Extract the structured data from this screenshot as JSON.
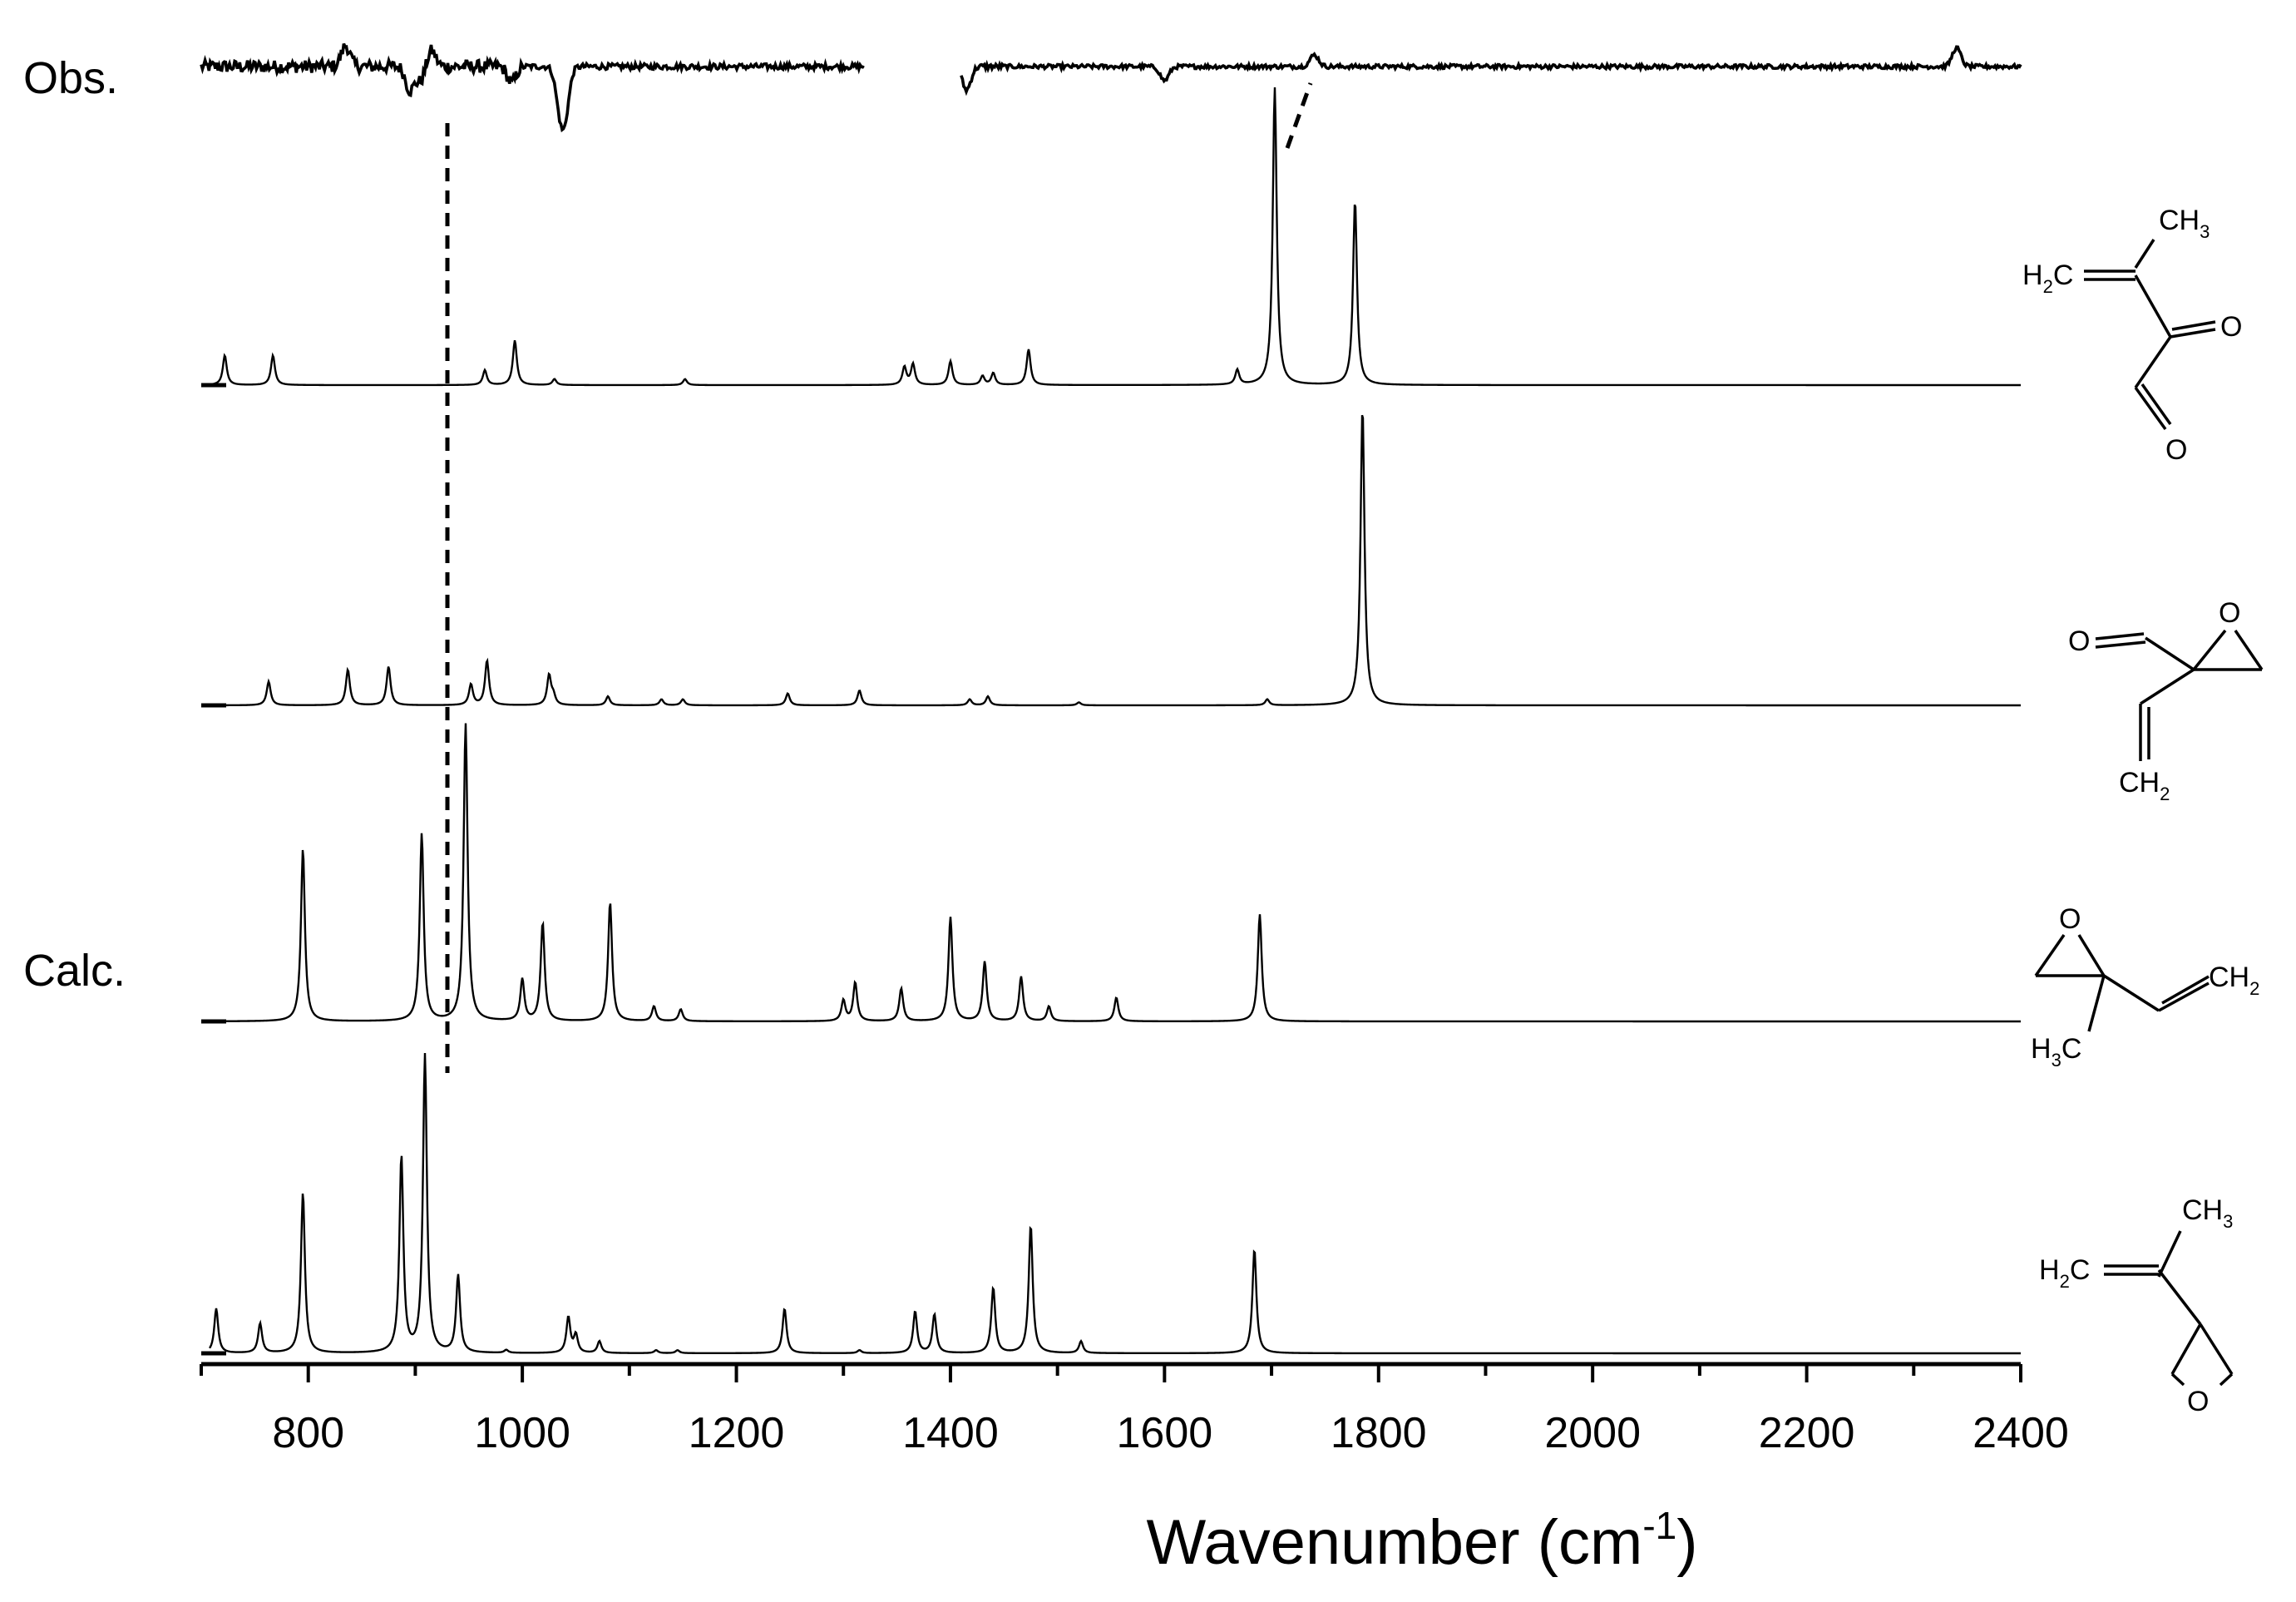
{
  "labels": {
    "observed": "Obs.",
    "calculated": "Calc."
  },
  "chart_data": {
    "type": "line",
    "xlabel": "Wavenumber (cm",
    "xlabel_sup": "-1",
    "xlabel_close": ")",
    "xlim": [
      700,
      2400
    ],
    "xticks": [
      800,
      1000,
      1200,
      1400,
      1600,
      1800,
      2000,
      2200,
      2400
    ],
    "grid": false,
    "legend": "none",
    "observed": {
      "segments": [
        [
          700,
          1320
        ],
        [
          1410,
          2400
        ]
      ],
      "features": [
        {
          "x": 835,
          "h": 0.9
        },
        {
          "x": 895,
          "h": -1.0
        },
        {
          "x": 905,
          "h": -0.6
        },
        {
          "x": 915,
          "h": 0.7
        },
        {
          "x": 990,
          "h": -0.7
        },
        {
          "x": 1035,
          "h": -1.5
        },
        {
          "x": 1040,
          "h": -1.8
        },
        {
          "x": 1415,
          "h": -1.0
        },
        {
          "x": 1600,
          "h": -0.6
        },
        {
          "x": 1740,
          "h": 0.5
        },
        {
          "x": 2340,
          "h": 0.8
        }
      ]
    },
    "calc_series": [
      {
        "peaks": [
          [
            722,
            0.1
          ],
          [
            767,
            0.1
          ],
          [
            965,
            0.05
          ],
          [
            993,
            0.15
          ],
          [
            1030,
            0.02
          ],
          [
            1152,
            0.02
          ],
          [
            1357,
            0.06
          ],
          [
            1365,
            0.07
          ],
          [
            1400,
            0.08
          ],
          [
            1430,
            0.03
          ],
          [
            1440,
            0.04
          ],
          [
            1473,
            0.12
          ],
          [
            1668,
            0.05
          ],
          [
            1703,
            1.0
          ],
          [
            1778,
            0.62
          ]
        ]
      },
      {
        "peaks": [
          [
            763,
            0.08
          ],
          [
            837,
            0.12
          ],
          [
            875,
            0.13
          ],
          [
            952,
            0.07
          ],
          [
            967,
            0.15
          ],
          [
            1025,
            0.1
          ],
          [
            1029,
            0.03
          ],
          [
            1080,
            0.03
          ],
          [
            1130,
            0.02
          ],
          [
            1150,
            0.02
          ],
          [
            1248,
            0.04
          ],
          [
            1315,
            0.05
          ],
          [
            1418,
            0.02
          ],
          [
            1435,
            0.03
          ],
          [
            1520,
            0.01
          ],
          [
            1696,
            0.02
          ],
          [
            1785,
            1.0
          ]
        ]
      },
      {
        "peaks": [
          [
            795,
            0.58
          ],
          [
            906,
            0.63
          ],
          [
            947,
            1.0
          ],
          [
            1000,
            0.14
          ],
          [
            1019,
            0.33
          ],
          [
            1082,
            0.4
          ],
          [
            1123,
            0.05
          ],
          [
            1148,
            0.04
          ],
          [
            1300,
            0.07
          ],
          [
            1311,
            0.13
          ],
          [
            1354,
            0.11
          ],
          [
            1400,
            0.35
          ],
          [
            1432,
            0.2
          ],
          [
            1466,
            0.15
          ],
          [
            1492,
            0.05
          ],
          [
            1555,
            0.08
          ],
          [
            1689,
            0.36
          ]
        ]
      },
      {
        "peaks": [
          [
            714,
            0.15
          ],
          [
            755,
            0.1
          ],
          [
            795,
            0.54
          ],
          [
            887,
            0.66
          ],
          [
            909,
            1.0
          ],
          [
            940,
            0.26
          ],
          [
            985,
            0.01
          ],
          [
            1043,
            0.12
          ],
          [
            1050,
            0.06
          ],
          [
            1072,
            0.04
          ],
          [
            1125,
            0.01
          ],
          [
            1145,
            0.01
          ],
          [
            1245,
            0.15
          ],
          [
            1315,
            0.01
          ],
          [
            1367,
            0.14
          ],
          [
            1385,
            0.13
          ],
          [
            1440,
            0.22
          ],
          [
            1475,
            0.43
          ],
          [
            1522,
            0.04
          ],
          [
            1684,
            0.35
          ]
        ]
      }
    ]
  },
  "structures": [
    {
      "texts": {
        "ch3": "CH",
        "ch3_sub": "3",
        "h2c": "H",
        "h2c_sub": "2",
        "h2c_tail": "C",
        "o1": "O",
        "o2": "O"
      }
    },
    {
      "texts": {
        "o1": "O",
        "o2": "O",
        "ch2": "CH",
        "ch2_sub": "2"
      }
    },
    {
      "texts": {
        "o": "O",
        "ch2": "CH",
        "ch2_sub": "2",
        "h3c": "H",
        "h3c_sub": "3",
        "h3c_tail": "C"
      }
    },
    {
      "texts": {
        "ch3": "CH",
        "ch3_sub": "3",
        "h2c": "H",
        "h2c_sub": "2",
        "h2c_tail": "C",
        "o": "O"
      }
    }
  ]
}
